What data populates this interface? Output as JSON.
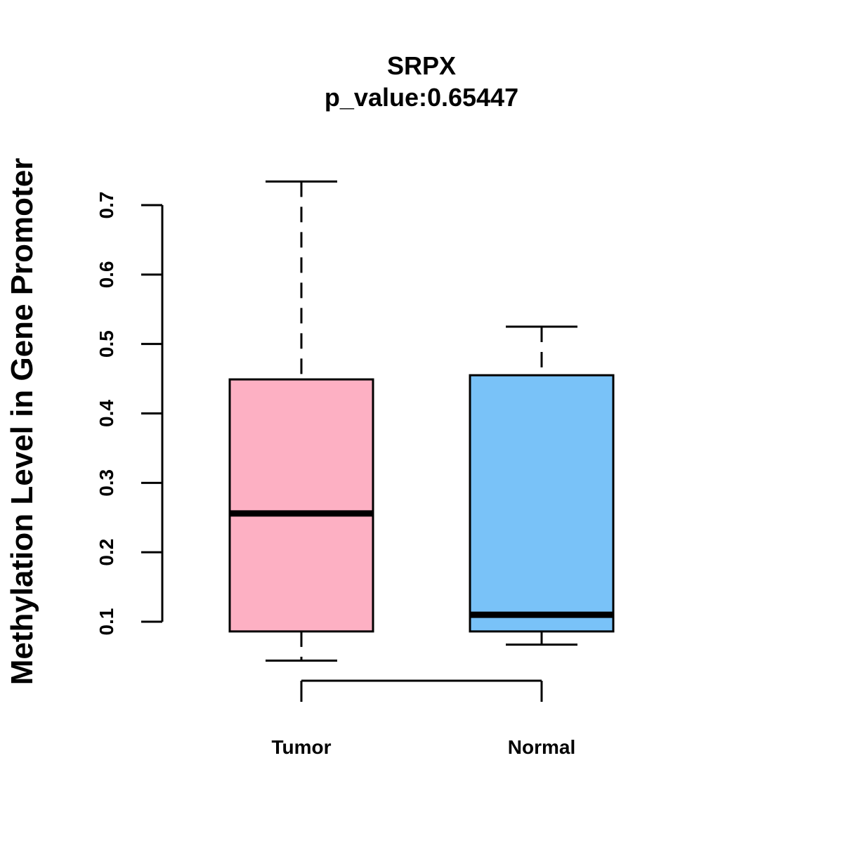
{
  "chart_data": {
    "type": "boxplot",
    "title": "SRPX",
    "subtitle": "p_value:0.65447",
    "ylabel": "Methylation Level in Gene Promoter",
    "xlabel": "",
    "yticks": [
      0.1,
      0.2,
      0.3,
      0.4,
      0.5,
      0.6,
      0.7
    ],
    "ytick_labels": [
      "0.1",
      "0.2",
      "0.3",
      "0.4",
      "0.5",
      "0.6",
      "0.7"
    ],
    "categories": [
      "Tumor",
      "Normal"
    ],
    "boxes": [
      {
        "name": "Tumor",
        "min": 0.044,
        "q1": 0.086,
        "median": 0.256,
        "q3": 0.449,
        "max": 0.734,
        "color": "#FDB0C3"
      },
      {
        "name": "Normal",
        "min": 0.067,
        "q1": 0.086,
        "median": 0.11,
        "q3": 0.455,
        "max": 0.525,
        "color": "#79C2F8"
      }
    ],
    "grid": false
  }
}
